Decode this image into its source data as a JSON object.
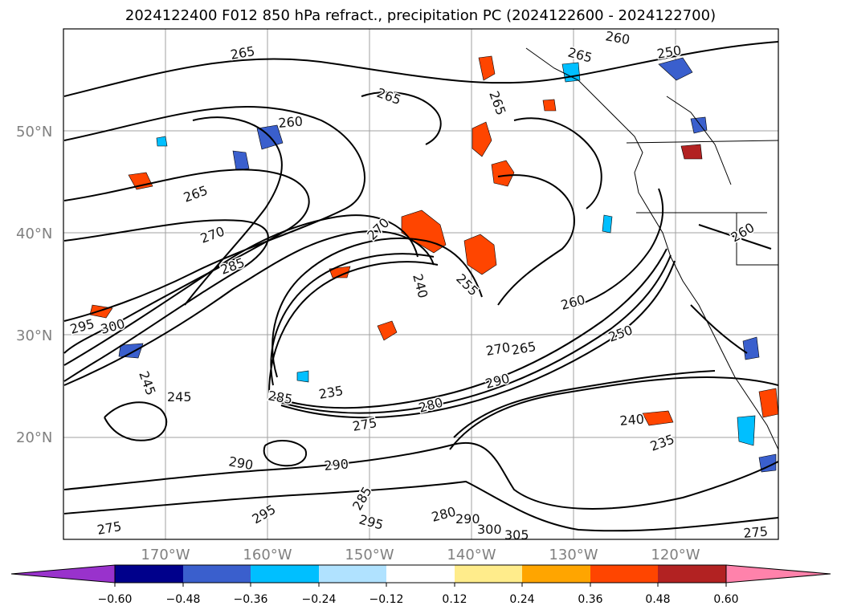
{
  "title": "2024122400 F012 850 hPa refract., precipitation PC (2024122600 - 2024122700)",
  "lat_labels": [
    "50°N",
    "40°N",
    "30°N",
    "20°N"
  ],
  "lon_labels": [
    "170°W",
    "160°W",
    "150°W",
    "140°W",
    "130°W",
    "120°W"
  ],
  "colorbar": {
    "ticks": [
      "−0.60",
      "−0.48",
      "−0.36",
      "−0.24",
      "−0.12",
      "0.12",
      "0.24",
      "0.36",
      "0.48",
      "0.60"
    ],
    "colors": [
      "#9932cc",
      "#00008b",
      "#3a5fcd",
      "#00bfff",
      "#b0e2ff",
      "#ffffff",
      "#ffec8b",
      "#ffa500",
      "#ff4500",
      "#b22222",
      "#ff82ab"
    ]
  },
  "contour_labels": [
    "265",
    "265",
    "265",
    "260",
    "250",
    "260",
    "265",
    "270",
    "285",
    "270",
    "240",
    "255",
    "260",
    "250",
    "270",
    "265",
    "290",
    "300",
    "295",
    "245",
    "285",
    "235",
    "280",
    "275",
    "240",
    "235",
    "290",
    "290",
    "295",
    "285",
    "295",
    "280",
    "300",
    "305",
    "290",
    "275",
    "275",
    "245",
    "260",
    "265"
  ]
}
